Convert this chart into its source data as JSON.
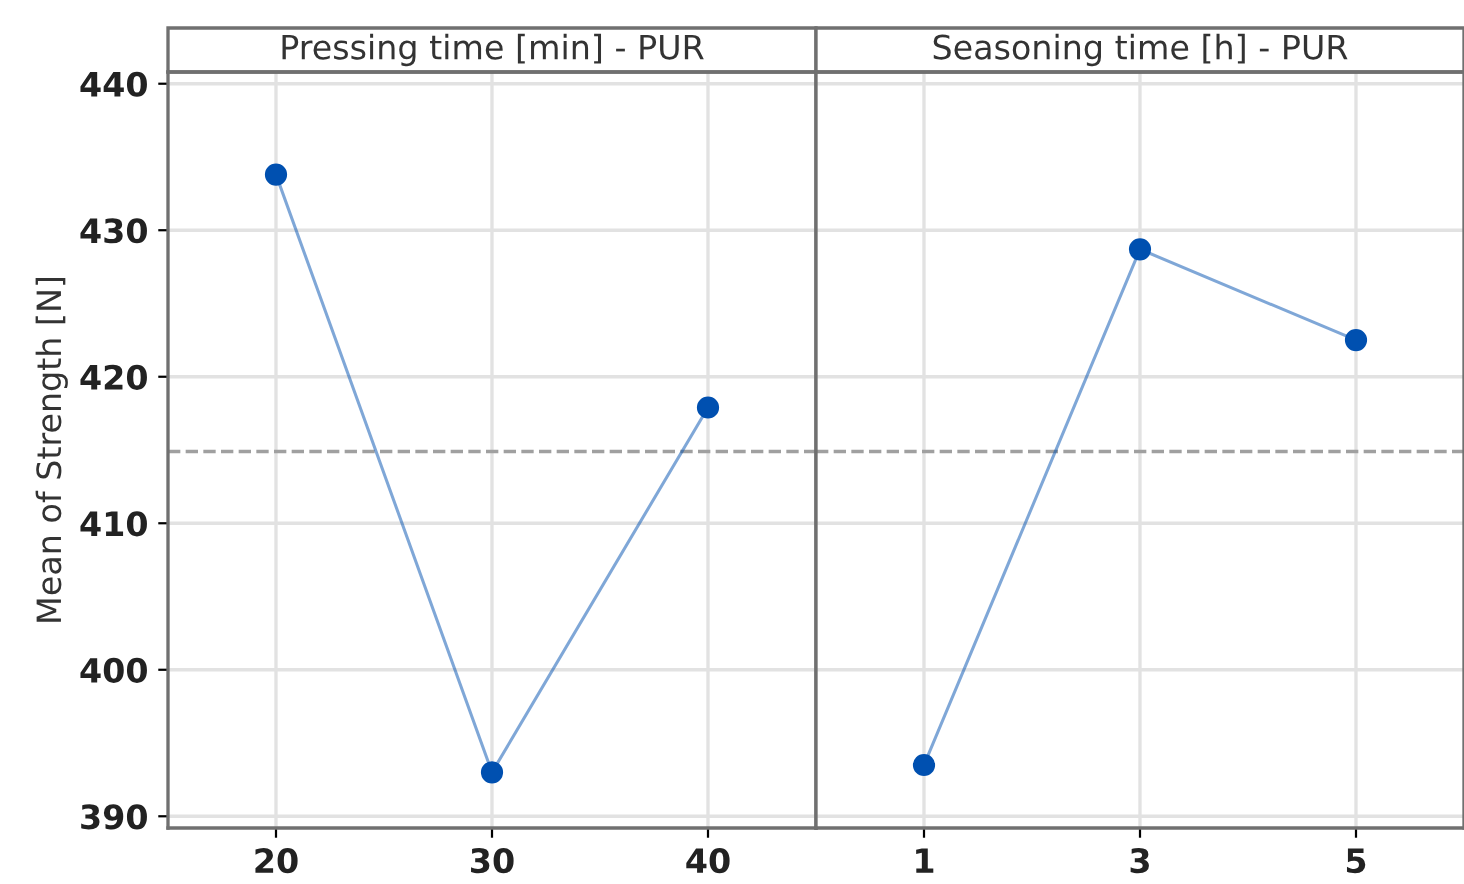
{
  "chart_data": [
    {
      "type": "line",
      "title": "Pressing time [min] - PUR",
      "ylabel": "Mean of Strength [N]",
      "categories": [
        "20",
        "30",
        "40"
      ],
      "series": [
        {
          "color": "#0050b0",
          "values": [
            433.8,
            393.0,
            417.9
          ]
        }
      ],
      "ylim": [
        389.2,
        440.8
      ],
      "yticks": [
        390,
        400,
        410,
        420,
        430,
        440
      ],
      "grid": true,
      "marker": "circle",
      "line_style": "solid",
      "ref_lines": [
        {
          "axis": "y",
          "value": 414.9,
          "color": "#a0a0a0",
          "line_style": "dashed"
        }
      ]
    },
    {
      "type": "line",
      "title": "Seasoning time [h] - PUR",
      "categories": [
        "1",
        "3",
        "5"
      ],
      "series": [
        {
          "color": "#0050b0",
          "values": [
            393.5,
            428.7,
            422.5
          ]
        }
      ],
      "ylim": [
        389.2,
        440.8
      ],
      "tick_labels": "x",
      "grid": true,
      "marker": "circle",
      "line_style": "solid",
      "ref_lines": [
        {
          "axis": "y",
          "value": 414.9,
          "color": "#a0a0a0",
          "line_style": "dashed"
        }
      ]
    }
  ]
}
